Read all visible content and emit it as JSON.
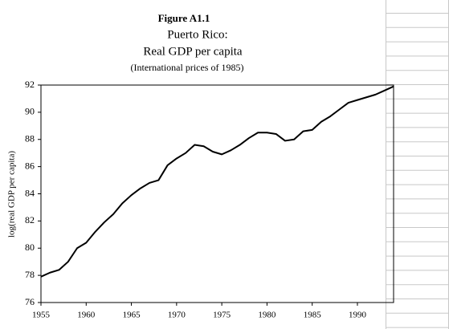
{
  "chart_data": {
    "type": "line",
    "title": "Figure A1.1",
    "subtitle": "Puerto Rico:",
    "subtitle2": "Real GDP per capita",
    "note": "(International prices of 1985)",
    "y_label": "log(real GDP per capita)",
    "x": [
      1955,
      1956,
      1957,
      1958,
      1959,
      1960,
      1961,
      1962,
      1963,
      1964,
      1965,
      1966,
      1967,
      1968,
      1969,
      1970,
      1971,
      1972,
      1973,
      1974,
      1975,
      1976,
      1977,
      1978,
      1979,
      1980,
      1981,
      1982,
      1983,
      1984,
      1985,
      1986,
      1987,
      1988,
      1989,
      1990,
      1991,
      1992,
      1993,
      1994
    ],
    "series": [
      {
        "color": "#000000",
        "values": [
          77.9,
          78.2,
          78.4,
          79.0,
          80.0,
          80.4,
          81.2,
          81.9,
          82.5,
          83.3,
          83.9,
          84.4,
          84.8,
          85.0,
          86.1,
          86.6,
          87.0,
          87.6,
          87.5,
          87.1,
          86.9,
          87.2,
          87.6,
          88.1,
          88.5,
          88.5,
          88.4,
          87.9,
          88.0,
          88.6,
          88.7,
          89.3,
          89.7,
          90.2,
          90.7,
          90.9,
          91.1,
          91.3,
          91.6,
          91.9
        ]
      }
    ],
    "xlim": [
      1955,
      1994
    ],
    "xticks": [
      1955,
      1960,
      1965,
      1970,
      1975,
      1980,
      1985,
      1990
    ],
    "ylim": [
      76,
      92
    ],
    "yticks": [
      76,
      78,
      80,
      82,
      84,
      86,
      88,
      90,
      92
    ],
    "grid": false
  }
}
